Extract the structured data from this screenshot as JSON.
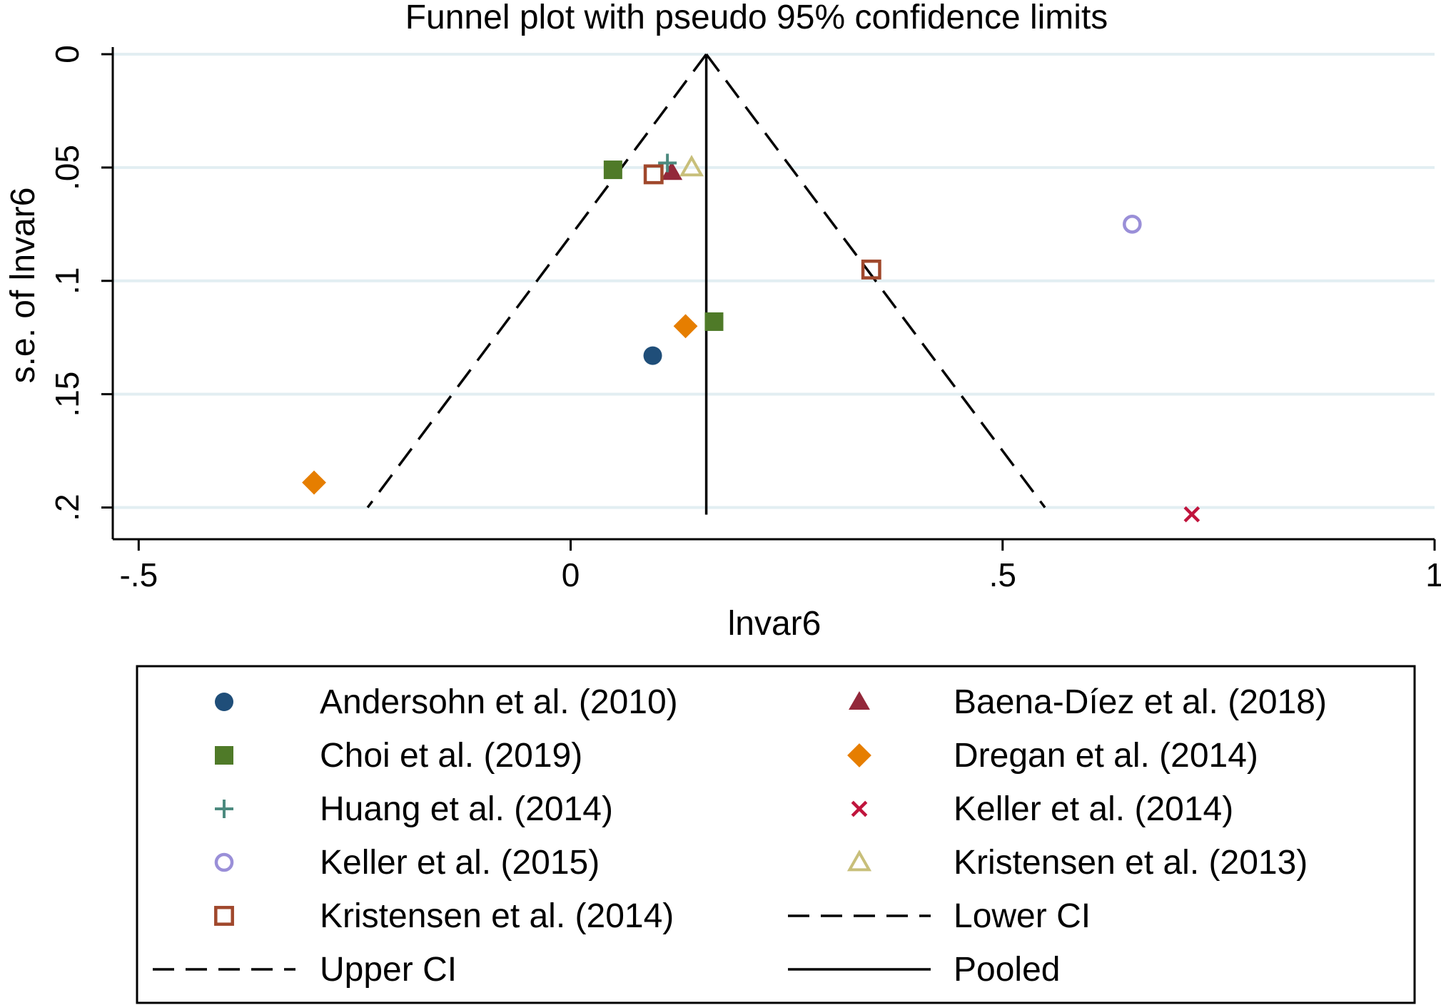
{
  "chart_data": {
    "type": "scatter",
    "title": "Funnel plot with pseudo 95% confidence limits",
    "xlabel": "lnvar6",
    "ylabel": "s.e. of lnvar6",
    "xlim": [
      -0.53,
      1.0
    ],
    "ylim": [
      0,
      0.214
    ],
    "y_reversed": true,
    "x_ticks": [
      {
        "value": -0.5,
        "label": "-.5"
      },
      {
        "value": 0,
        "label": "0"
      },
      {
        "value": 0.5,
        "label": ".5"
      },
      {
        "value": 1,
        "label": "1"
      }
    ],
    "y_ticks": [
      {
        "value": 0,
        "label": "0"
      },
      {
        "value": 0.05,
        "label": ".05"
      },
      {
        "value": 0.1,
        "label": ".1"
      },
      {
        "value": 0.15,
        "label": ".15"
      },
      {
        "value": 0.2,
        "label": ".2"
      }
    ],
    "grid": "horizontal",
    "pooled_estimate": 0.157,
    "funnel_se_max": 0.2,
    "series": [
      {
        "name": "Andersohn et al. (2010)",
        "marker": "circle-filled",
        "color": "#1f4e79",
        "points": [
          {
            "x": 0.095,
            "y": 0.133
          }
        ]
      },
      {
        "name": "Baena-Díez et al. (2018)",
        "marker": "triangle-filled",
        "color": "#93283a",
        "points": [
          {
            "x": 0.117,
            "y": 0.052
          }
        ]
      },
      {
        "name": "Choi et al. (2019)",
        "marker": "square-filled",
        "color": "#4f7a28",
        "points": [
          {
            "x": 0.049,
            "y": 0.051
          },
          {
            "x": 0.166,
            "y": 0.118
          }
        ]
      },
      {
        "name": "Dregan et al. (2014)",
        "marker": "diamond-filled",
        "color": "#e67e00",
        "points": [
          {
            "x": 0.133,
            "y": 0.12
          },
          {
            "x": -0.297,
            "y": 0.189
          }
        ]
      },
      {
        "name": "Huang et al. (2014)",
        "marker": "plus",
        "color": "#4c8a7f",
        "points": [
          {
            "x": 0.112,
            "y": 0.048
          }
        ]
      },
      {
        "name": "Keller et al. (2014)",
        "marker": "x",
        "color": "#c0143c",
        "points": [
          {
            "x": 0.719,
            "y": 0.203
          }
        ]
      },
      {
        "name": "Keller et al. (2015)",
        "marker": "circle-hollow",
        "color": "#9a8fd8",
        "points": [
          {
            "x": 0.65,
            "y": 0.075
          }
        ]
      },
      {
        "name": "Kristensen et al. (2013)",
        "marker": "triangle-hollow",
        "color": "#c8bf7a",
        "points": [
          {
            "x": 0.14,
            "y": 0.05
          }
        ]
      },
      {
        "name": "Kristensen et al. (2014)",
        "marker": "square-hollow",
        "color": "#a0482c",
        "points": [
          {
            "x": 0.096,
            "y": 0.053
          },
          {
            "x": 0.348,
            "y": 0.095
          }
        ]
      }
    ],
    "lines": [
      {
        "name": "Lower CI",
        "style": "dashed"
      },
      {
        "name": "Upper CI",
        "style": "dashed"
      },
      {
        "name": "Pooled",
        "style": "solid"
      }
    ],
    "legend": {
      "placement": "bottom",
      "columns": 2,
      "entries": [
        "Andersohn et al. (2010)",
        "Baena-Díez et al. (2018)",
        "Choi et al. (2019)",
        "Dregan et al. (2014)",
        "Huang et al. (2014)",
        "Keller et al. (2014)",
        "Keller et al. (2015)",
        "Kristensen et al. (2013)",
        "Kristensen et al. (2014)",
        "Lower CI",
        "Upper CI",
        "Pooled"
      ]
    }
  }
}
